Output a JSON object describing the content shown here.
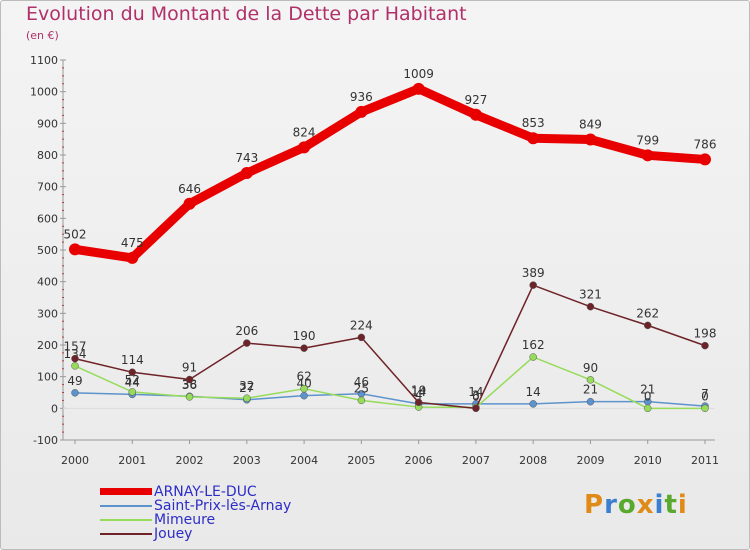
{
  "title": "Evolution du Montant de la Dette par Habitant",
  "unit": "(en €)",
  "logo": {
    "text": "Proxiti",
    "colors": [
      "#e08a18",
      "#3b7fd0",
      "#5aa92f",
      "#e08a18",
      "#3b7fd0",
      "#5aa92f",
      "#e08a18"
    ]
  },
  "chart_data": {
    "type": "line",
    "title": "Evolution du Montant de la Dette par Habitant",
    "ylabel": "(en €)",
    "x": [
      "2000",
      "2001",
      "2002",
      "2003",
      "2004",
      "2005",
      "2006",
      "2007",
      "2008",
      "2009",
      "2010",
      "2011"
    ],
    "ylim": [
      -100,
      1100
    ],
    "yticks": [
      -100,
      0,
      100,
      200,
      300,
      400,
      500,
      600,
      700,
      800,
      900,
      1000,
      1100
    ],
    "grid": false,
    "legend": "bottom-left",
    "series": [
      {
        "name": "ARNAY-LE-DUC",
        "color": "#e80000",
        "values": [
          502,
          475,
          646,
          743,
          824,
          936,
          1009,
          927,
          853,
          849,
          799,
          786
        ],
        "labels": [
          "502",
          "475",
          "646",
          "743",
          "824",
          "936",
          "1009",
          "927",
          "853",
          "849",
          "799",
          "786"
        ]
      },
      {
        "name": "Saint-Prix-lès-Arnay",
        "color": "#5d93cc",
        "values": [
          49,
          44,
          38,
          27,
          40,
          46,
          14,
          14,
          14,
          21,
          21,
          7
        ],
        "labels": [
          "49",
          "44",
          "38",
          "27",
          "40",
          "46",
          "14",
          "14",
          "14",
          "21",
          "21",
          "7"
        ]
      },
      {
        "name": "Mimeure",
        "color": "#96dc5a",
        "values": [
          134,
          52,
          36,
          32,
          62,
          25,
          4,
          3,
          162,
          90,
          0,
          0
        ],
        "labels": [
          "134",
          "52",
          "36",
          "32",
          "62",
          "25",
          "4",
          "3",
          "162",
          "90",
          "0",
          "0"
        ]
      },
      {
        "name": "Jouey",
        "color": "#6e2328",
        "values": [
          157,
          114,
          91,
          206,
          190,
          224,
          19,
          0,
          389,
          321,
          262,
          198
        ],
        "labels": [
          "157",
          "114",
          "91",
          "206",
          "190",
          "224",
          "19",
          "0",
          "389",
          "321",
          "262",
          "198"
        ]
      }
    ]
  }
}
